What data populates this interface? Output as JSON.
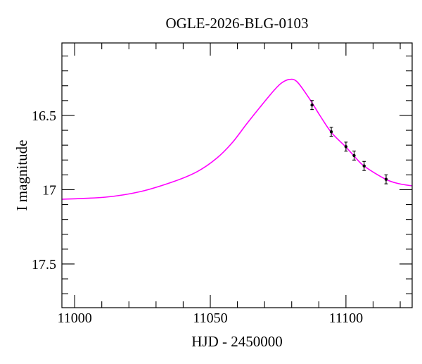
{
  "figure": {
    "background": "#ffffff",
    "frame_color": "#000000"
  },
  "chart_data": {
    "type": "line",
    "title": "OGLE-2026-BLG-0103",
    "xlabel": "HJD - 2450000",
    "ylabel": "I magnitude",
    "xlim": [
      10995.3,
      11124.4
    ],
    "ylim": [
      17.794,
      16.012
    ],
    "y_axis_inverted": true,
    "grid": false,
    "legend_position": "none",
    "axes": {
      "tick_direction": "in",
      "x_major_ticks": [
        11000,
        11050,
        11100
      ],
      "x_major_tick_labels": [
        "11000",
        "11050",
        "11100"
      ],
      "x_minor_tick_step": 10,
      "y_major_ticks": [
        16.5,
        17.0,
        17.5
      ],
      "y_major_tick_labels": [
        "16.5",
        "17",
        "17.5"
      ],
      "y_minor_tick_step": 0.1
    },
    "series": [
      {
        "name": "microlensing-model-curve",
        "type": "line",
        "color": "#ff00ff",
        "line_width": 1.6,
        "points": [
          [
            10995.3,
            17.064
          ],
          [
            11011.4,
            17.05
          ],
          [
            11024.4,
            17.012
          ],
          [
            11036.5,
            16.945
          ],
          [
            11045.1,
            16.879
          ],
          [
            11052.3,
            16.789
          ],
          [
            11058.0,
            16.685
          ],
          [
            11063.2,
            16.562
          ],
          [
            11068.4,
            16.443
          ],
          [
            11073.6,
            16.329
          ],
          [
            11076.2,
            16.282
          ],
          [
            11079.0,
            16.258
          ],
          [
            11081.9,
            16.272
          ],
          [
            11086.5,
            16.386
          ],
          [
            11090.4,
            16.5
          ],
          [
            11094.6,
            16.614
          ],
          [
            11100.0,
            16.713
          ],
          [
            11103.1,
            16.775
          ],
          [
            11106.7,
            16.841
          ],
          [
            11114.8,
            16.931
          ],
          [
            11119.7,
            16.96
          ],
          [
            11124.4,
            16.974
          ]
        ]
      },
      {
        "name": "observed-data-points",
        "type": "scatter",
        "marker": "filled-circle-with-errorbar",
        "color": "#000000",
        "mag_error": 0.02,
        "points": [
          [
            11087.5,
            16.43
          ],
          [
            11094.6,
            16.61
          ],
          [
            11100.0,
            16.71
          ],
          [
            11103.0,
            16.77
          ],
          [
            11106.7,
            16.84
          ],
          [
            11114.8,
            16.93
          ]
        ]
      }
    ]
  }
}
